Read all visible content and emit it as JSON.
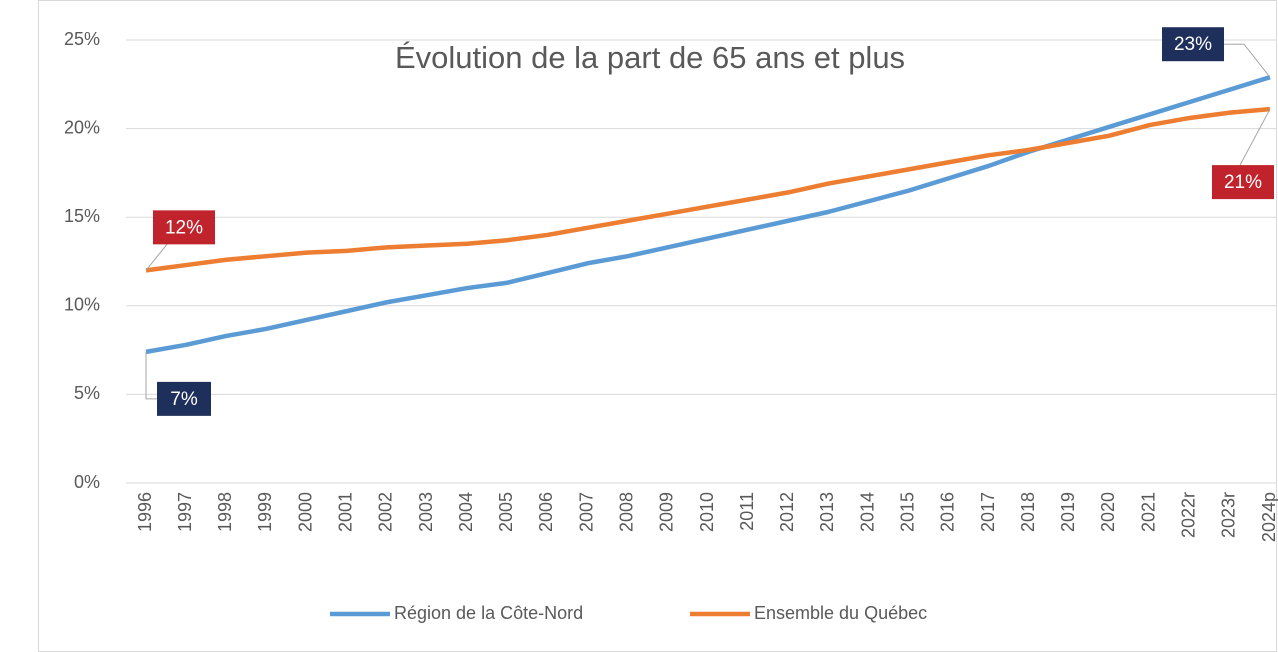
{
  "chart_data": {
    "type": "line",
    "title": "Évolution de la part de 65 ans et plus",
    "categories": [
      "1996",
      "1997",
      "1998",
      "1999",
      "2000",
      "2001",
      "2002",
      "2003",
      "2004",
      "2005",
      "2006",
      "2007",
      "2008",
      "2009",
      "2010",
      "2011",
      "2012",
      "2013",
      "2014",
      "2015",
      "2016",
      "2017",
      "2018",
      "2019",
      "2020",
      "2021",
      "2022r",
      "2023r",
      "2024p"
    ],
    "series": [
      {
        "name": "Région de la Côte-Nord",
        "color": "#5b9bd5",
        "label_color": "#1f2f5c",
        "values": [
          7.4,
          7.8,
          8.3,
          8.7,
          9.2,
          9.7,
          10.2,
          10.6,
          11.0,
          11.3,
          11.85,
          12.4,
          12.8,
          13.3,
          13.8,
          14.3,
          14.8,
          15.3,
          15.9,
          16.5,
          17.2,
          17.9,
          18.7,
          19.4,
          20.1,
          20.8,
          21.5,
          22.2,
          22.9
        ],
        "value_labels": [
          "7%",
          null,
          null,
          null,
          null,
          null,
          null,
          null,
          null,
          null,
          null,
          null,
          null,
          null,
          null,
          null,
          null,
          null,
          null,
          null,
          null,
          null,
          null,
          null,
          null,
          null,
          null,
          null,
          "23%"
        ]
      },
      {
        "name": "Ensemble du Québec",
        "color": "#ed7d31",
        "label_color": "#c0232c",
        "values": [
          12.0,
          12.3,
          12.6,
          12.8,
          13.0,
          13.1,
          13.3,
          13.4,
          13.5,
          13.7,
          14.0,
          14.4,
          14.8,
          15.2,
          15.6,
          16.0,
          16.4,
          16.9,
          17.3,
          17.7,
          18.1,
          18.5,
          18.8,
          19.2,
          19.6,
          20.2,
          20.6,
          20.9,
          21.1
        ],
        "value_labels": [
          "12%",
          null,
          null,
          null,
          null,
          null,
          null,
          null,
          null,
          null,
          null,
          null,
          null,
          null,
          null,
          null,
          null,
          null,
          null,
          null,
          null,
          null,
          null,
          null,
          null,
          null,
          null,
          null,
          "21%"
        ]
      }
    ],
    "ylim": [
      0,
      25
    ],
    "yticks": [
      {
        "value": 0,
        "label": "0%"
      },
      {
        "value": 5,
        "label": "5%"
      },
      {
        "value": 10,
        "label": "10%"
      },
      {
        "value": 15,
        "label": "15%"
      },
      {
        "value": 20,
        "label": "20%"
      },
      {
        "value": 25,
        "label": "25%"
      }
    ],
    "grid": true,
    "legend": "bottom"
  }
}
